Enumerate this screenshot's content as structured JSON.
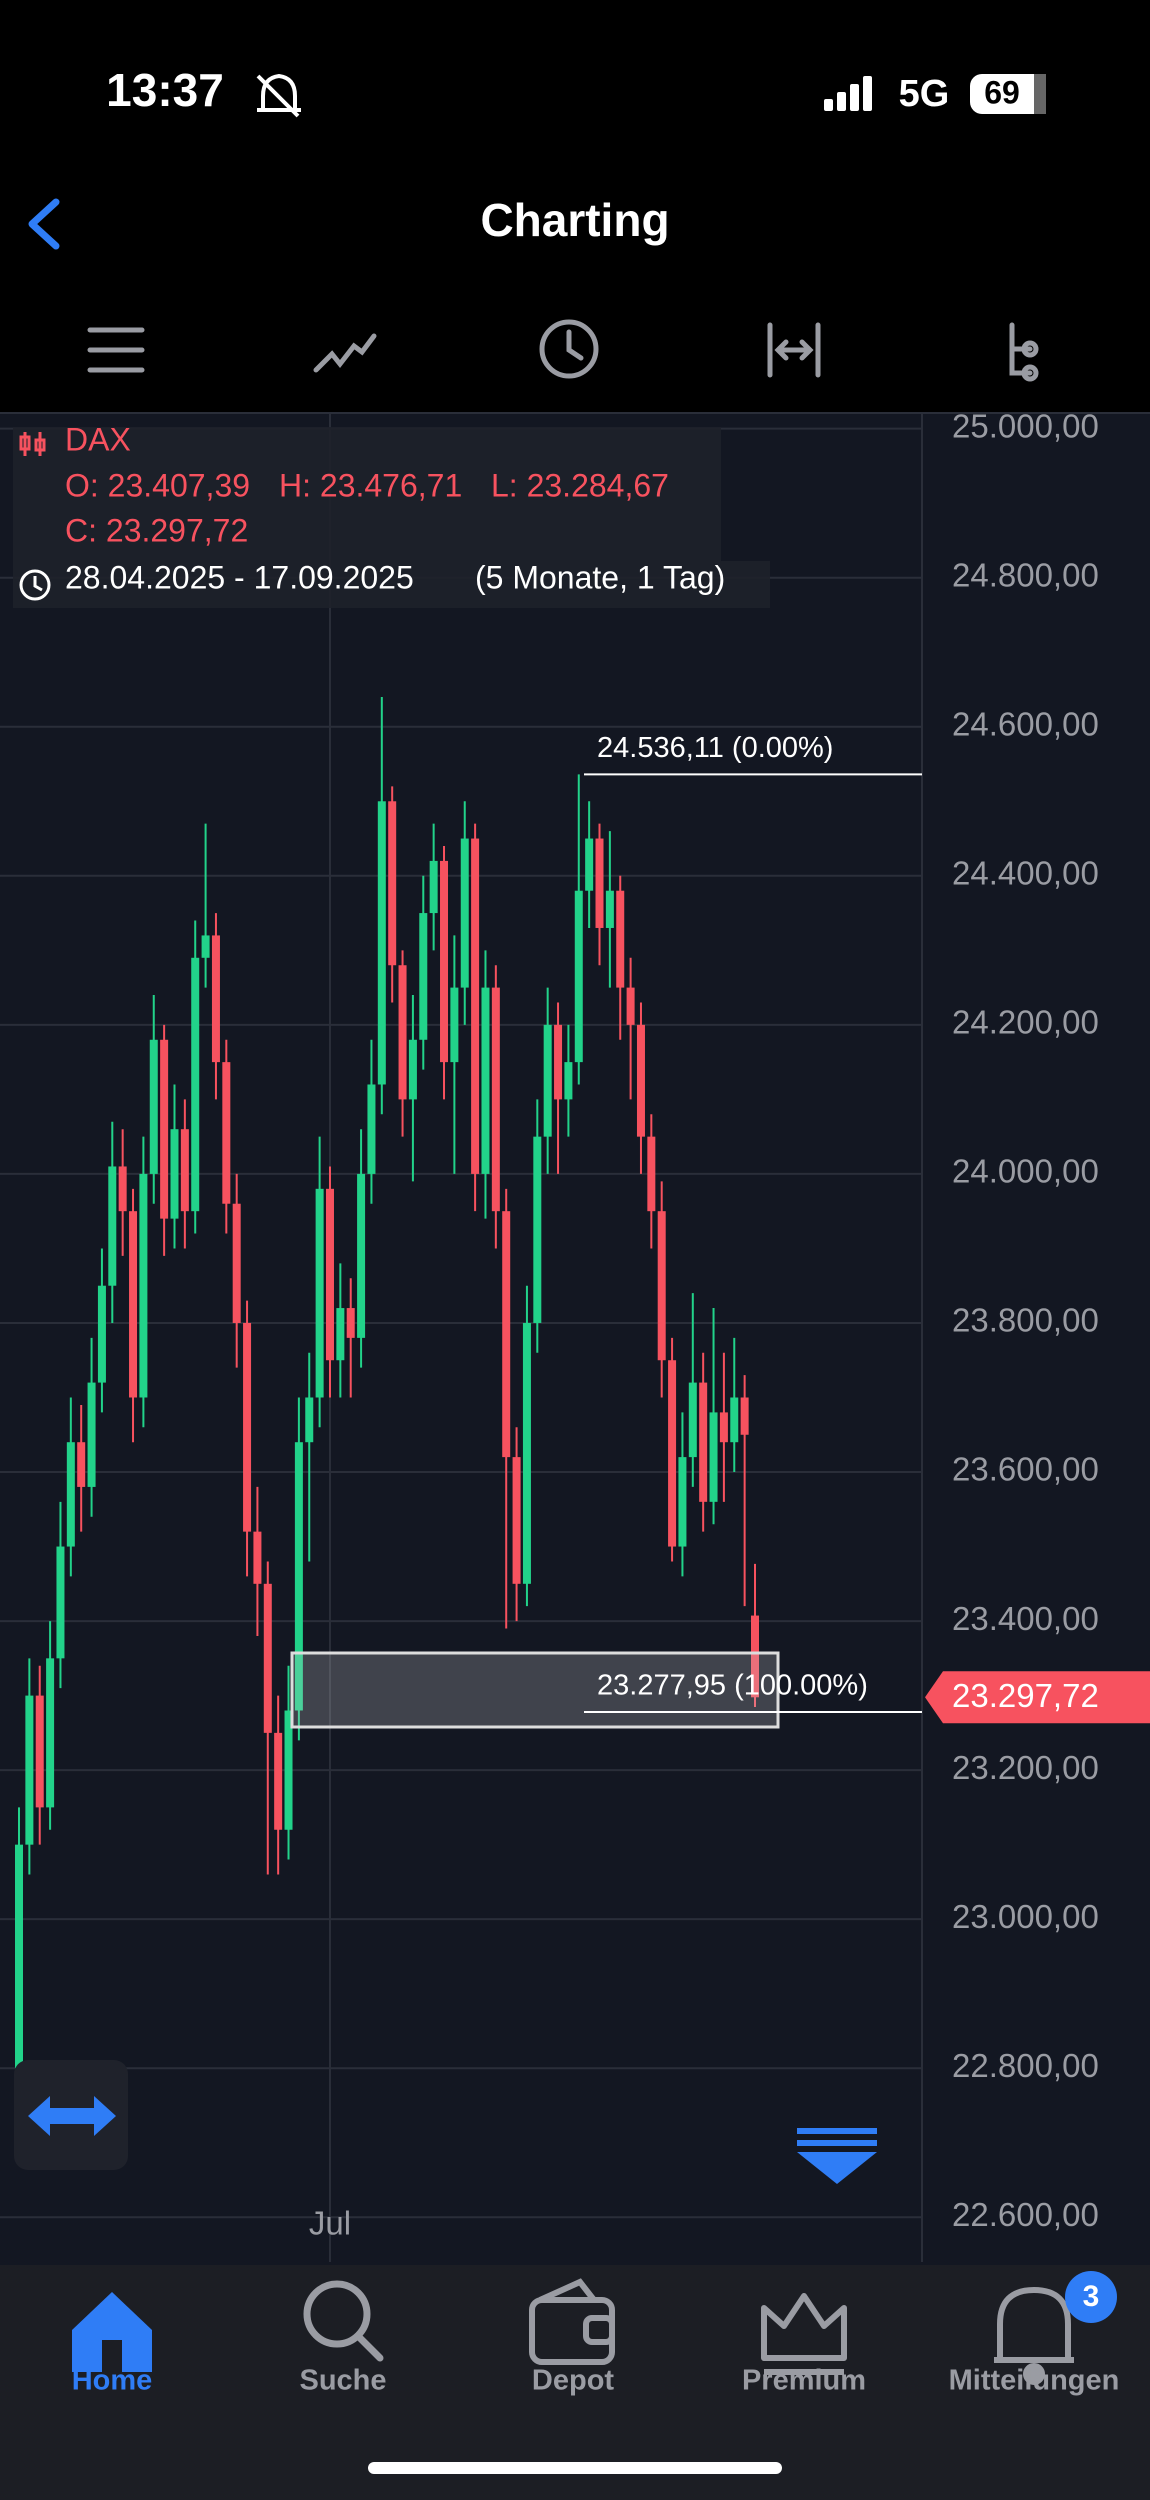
{
  "status": {
    "time": "13:37",
    "network": "5G",
    "battery": "69"
  },
  "header": {
    "title": "Charting"
  },
  "chart_data": {
    "type": "candlestick",
    "symbol": "DAX",
    "ohlc_text": [
      "O: 23.407,39",
      "H: 23.476,71",
      "L: 23.284,67",
      "C: 23.297,72"
    ],
    "date_range": "28.04.2025 - 17.09.2025",
    "period": "(5 Monate, 1 Tag)",
    "categories": [
      null,
      null,
      null,
      null,
      null,
      null,
      null,
      null,
      null,
      null,
      null,
      null,
      null,
      null,
      null,
      null,
      null,
      null,
      null,
      null,
      null,
      null,
      null,
      null,
      null,
      null,
      null,
      null,
      null,
      null,
      "Jul",
      null,
      null,
      null,
      null,
      null,
      null,
      null,
      null,
      null,
      null,
      null,
      null,
      null,
      null,
      null,
      null,
      null,
      null,
      null,
      null,
      null,
      null,
      null,
      null,
      null,
      null,
      null,
      null,
      null,
      null,
      null,
      null,
      null,
      null,
      null,
      null,
      null,
      null,
      null,
      null,
      null
    ],
    "series": {
      "open": [
        22800,
        23100,
        23300,
        23150,
        23350,
        23500,
        23640,
        23580,
        23720,
        23850,
        24010,
        23950,
        23700,
        24000,
        24180,
        23940,
        24060,
        23950,
        24290,
        24320,
        24150,
        23960,
        23800,
        23520,
        23450,
        23250,
        23120,
        23280,
        23640,
        23700,
        23980,
        23750,
        23820,
        23780,
        24000,
        24120,
        24500,
        24280,
        24100,
        24180,
        24350,
        24420,
        24150,
        24250,
        24450,
        24000,
        24250,
        23950,
        23620,
        23450,
        23800,
        24050,
        24200,
        24100,
        24150,
        24380,
        24450,
        24330,
        24380,
        24250,
        24200,
        24050,
        23950,
        23750,
        23500,
        23620,
        23720,
        23560,
        23680,
        23640,
        23700,
        23407.39
      ],
      "high": [
        23150,
        23350,
        23340,
        23400,
        23560,
        23700,
        23690,
        23780,
        23900,
        24070,
        24060,
        23980,
        24050,
        24240,
        24200,
        24120,
        24100,
        24340,
        24470,
        24350,
        24180,
        24000,
        23830,
        23580,
        23480,
        23300,
        23340,
        23700,
        23760,
        24050,
        24010,
        23880,
        23860,
        24060,
        24180,
        24640,
        24520,
        24300,
        24240,
        24400,
        24470,
        24440,
        24320,
        24500,
        24470,
        24300,
        24280,
        23980,
        23660,
        23850,
        24100,
        24250,
        24230,
        24200,
        24536.11,
        24500,
        24470,
        24460,
        24400,
        24290,
        24230,
        24080,
        23990,
        23780,
        23680,
        23840,
        23760,
        23820,
        23760,
        23780,
        23730,
        23476.71
      ],
      "low": [
        22760,
        23060,
        23100,
        23120,
        23310,
        23460,
        23520,
        23540,
        23680,
        23800,
        23890,
        23640,
        23660,
        23960,
        23890,
        23900,
        23900,
        23920,
        24250,
        24100,
        23920,
        23740,
        23460,
        23380,
        23060,
        23060,
        23080,
        23240,
        23480,
        23660,
        23700,
        23700,
        23700,
        23740,
        23960,
        24080,
        24230,
        24050,
        23990,
        24140,
        24300,
        24100,
        24000,
        24200,
        23950,
        23940,
        23900,
        23390,
        23400,
        23420,
        23760,
        24000,
        24000,
        24050,
        24120,
        24330,
        24280,
        24250,
        24180,
        24100,
        24000,
        23900,
        23700,
        23480,
        23460,
        23580,
        23520,
        23530,
        23560,
        23600,
        23420,
        23284.67
      ],
      "close": [
        23100,
        23300,
        23150,
        23350,
        23500,
        23640,
        23580,
        23720,
        23850,
        24010,
        23950,
        23700,
        24000,
        24180,
        23940,
        24060,
        23950,
        24290,
        24320,
        24150,
        23960,
        23800,
        23520,
        23450,
        23250,
        23120,
        23280,
        23640,
        23700,
        23980,
        23750,
        23820,
        23780,
        24000,
        24120,
        24500,
        24280,
        24100,
        24180,
        24350,
        24420,
        24150,
        24250,
        24450,
        24000,
        24250,
        23950,
        23620,
        23450,
        23800,
        24050,
        24200,
        24100,
        24150,
        24380,
        24450,
        24330,
        24380,
        24250,
        24200,
        24050,
        23950,
        23750,
        23500,
        23620,
        23720,
        23560,
        23680,
        23640,
        23700,
        23650,
        23297.72
      ]
    },
    "up_color": "#22d38a",
    "down_color": "#f7525f",
    "ylim": [
      22540,
      25021
    ],
    "yticks": [
      {
        "value": 25000,
        "label": "25.000,00"
      },
      {
        "value": 24800,
        "label": "24.800,00"
      },
      {
        "value": 24600,
        "label": "24.600,00"
      },
      {
        "value": 24400,
        "label": "24.400,00"
      },
      {
        "value": 24200,
        "label": "24.200,00"
      },
      {
        "value": 24000,
        "label": "24.000,00"
      },
      {
        "value": 23800,
        "label": "23.800,00"
      },
      {
        "value": 23600,
        "label": "23.600,00"
      },
      {
        "value": 23400,
        "label": "23.400,00"
      },
      {
        "value": 23200,
        "label": "23.200,00"
      },
      {
        "value": 23000,
        "label": "23.000,00"
      },
      {
        "value": 22800,
        "label": "22.800,00"
      },
      {
        "value": 22600,
        "label": "22.600,00"
      }
    ],
    "grid": true,
    "last_price": {
      "value": 23297.72,
      "label": "23.297,72"
    },
    "annotations": [
      {
        "value": 24536.11,
        "label": "24.536,11 (0.00%)"
      },
      {
        "value": 23277.95,
        "label": "23.277,95 (100.00%)"
      }
    ]
  },
  "tabs": [
    "Home",
    "Suche",
    "Depot",
    "Premium",
    "Mitteilungen"
  ],
  "badge": "3"
}
